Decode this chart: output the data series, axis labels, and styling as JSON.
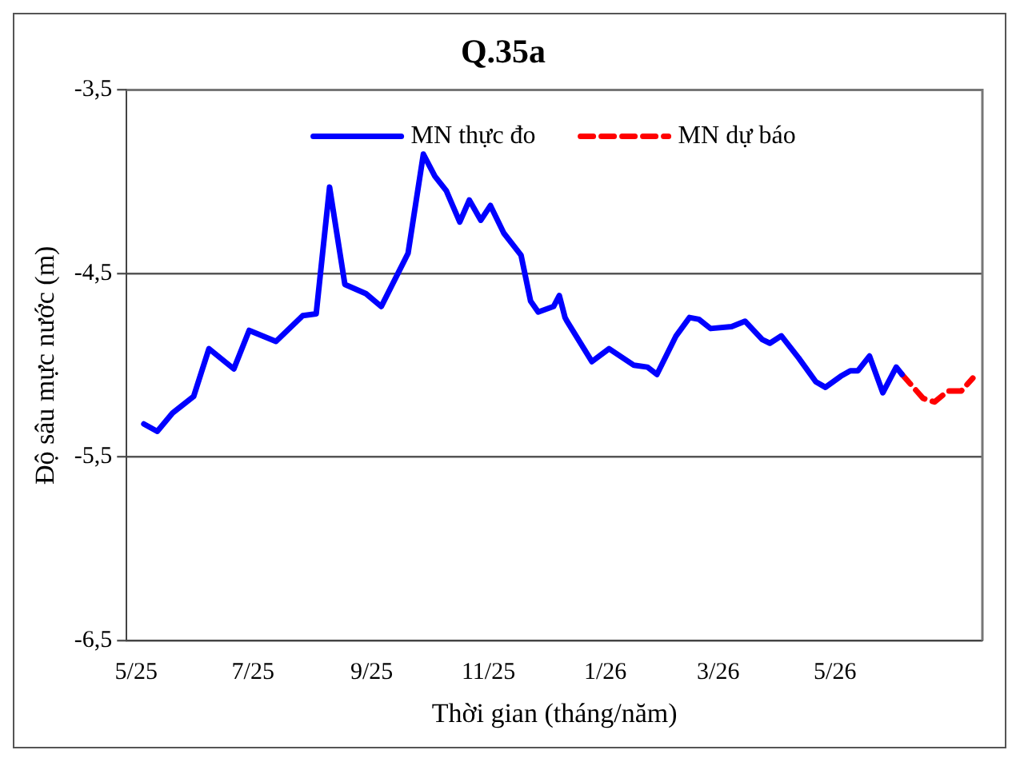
{
  "chart_data": {
    "type": "line",
    "title": "Q.35a",
    "xlabel": "Thời gian (tháng/năm)",
    "ylabel": "Độ sâu mực nước (m)",
    "xlim": [
      "2025-04-26",
      "2026-07-17"
    ],
    "xticks": [
      {
        "value": "2025-05",
        "label": "5/25"
      },
      {
        "value": "2025-07",
        "label": "7/25"
      },
      {
        "value": "2025-09",
        "label": "9/25"
      },
      {
        "value": "2025-11",
        "label": "11/25"
      },
      {
        "value": "2026-01",
        "label": "1/26"
      },
      {
        "value": "2026-03",
        "label": "3/26"
      },
      {
        "value": "2026-05",
        "label": "5/26"
      }
    ],
    "ylim": [
      -6.5,
      -3.5
    ],
    "yticks": [
      {
        "value": -6.5,
        "label": "-6,5"
      },
      {
        "value": -5.5,
        "label": "-5,5"
      },
      {
        "value": -4.5,
        "label": "-4,5"
      },
      {
        "value": -3.5,
        "label": "-3,5"
      }
    ],
    "grid": "y",
    "legend": "top",
    "marker": "none",
    "series": [
      {
        "name": "MN thực đo",
        "color": "#0000ff",
        "line_style": "solid",
        "x": [
          "2025-05-05",
          "2025-05-12",
          "2025-05-20",
          "2025-05-31",
          "2025-06-08",
          "2025-06-21",
          "2025-06-29",
          "2025-07-13",
          "2025-07-27",
          "2025-08-03",
          "2025-08-10",
          "2025-08-18",
          "2025-08-29",
          "2025-09-06",
          "2025-09-20",
          "2025-09-28",
          "2025-10-04",
          "2025-10-10",
          "2025-10-17",
          "2025-10-22",
          "2025-10-28",
          "2025-11-02",
          "2025-11-09",
          "2025-11-18",
          "2025-11-23",
          "2025-11-27",
          "2025-12-05",
          "2025-12-08",
          "2025-12-11",
          "2025-12-12",
          "2025-12-25",
          "2026-01-03",
          "2026-01-16",
          "2026-01-23",
          "2026-01-28",
          "2026-02-07",
          "2026-02-14",
          "2026-02-19",
          "2026-02-25",
          "2026-03-08",
          "2026-03-15",
          "2026-03-24",
          "2026-03-28",
          "2026-04-03",
          "2026-04-12",
          "2026-04-21",
          "2026-04-26",
          "2026-05-04",
          "2026-05-09",
          "2026-05-13",
          "2026-05-19",
          "2026-05-26",
          "2026-06-02",
          "2026-06-05"
        ],
        "values": [
          -5.32,
          -5.36,
          -5.26,
          -5.17,
          -4.91,
          -5.02,
          -4.81,
          -4.87,
          -4.73,
          -4.72,
          -4.03,
          -4.56,
          -4.61,
          -4.68,
          -4.39,
          -3.85,
          -3.97,
          -4.05,
          -4.22,
          -4.1,
          -4.21,
          -4.13,
          -4.28,
          -4.4,
          -4.65,
          -4.71,
          -4.68,
          -4.62,
          -4.74,
          -4.76,
          -4.98,
          -4.91,
          -5.0,
          -5.01,
          -5.05,
          -4.84,
          -4.74,
          -4.75,
          -4.8,
          -4.79,
          -4.76,
          -4.86,
          -4.88,
          -4.84,
          -4.96,
          -5.09,
          -5.12,
          -5.06,
          -5.03,
          -5.03,
          -4.95,
          -5.15,
          -5.01,
          -5.05
        ]
      },
      {
        "name": "MN dự báo",
        "color": "#ff0000",
        "line_style": "dashed",
        "x": [
          "2026-06-05",
          "2026-06-16",
          "2026-06-22",
          "2026-06-29",
          "2026-07-06",
          "2026-07-12"
        ],
        "values": [
          -5.05,
          -5.18,
          -5.2,
          -5.14,
          -5.14,
          -5.07
        ]
      }
    ]
  }
}
